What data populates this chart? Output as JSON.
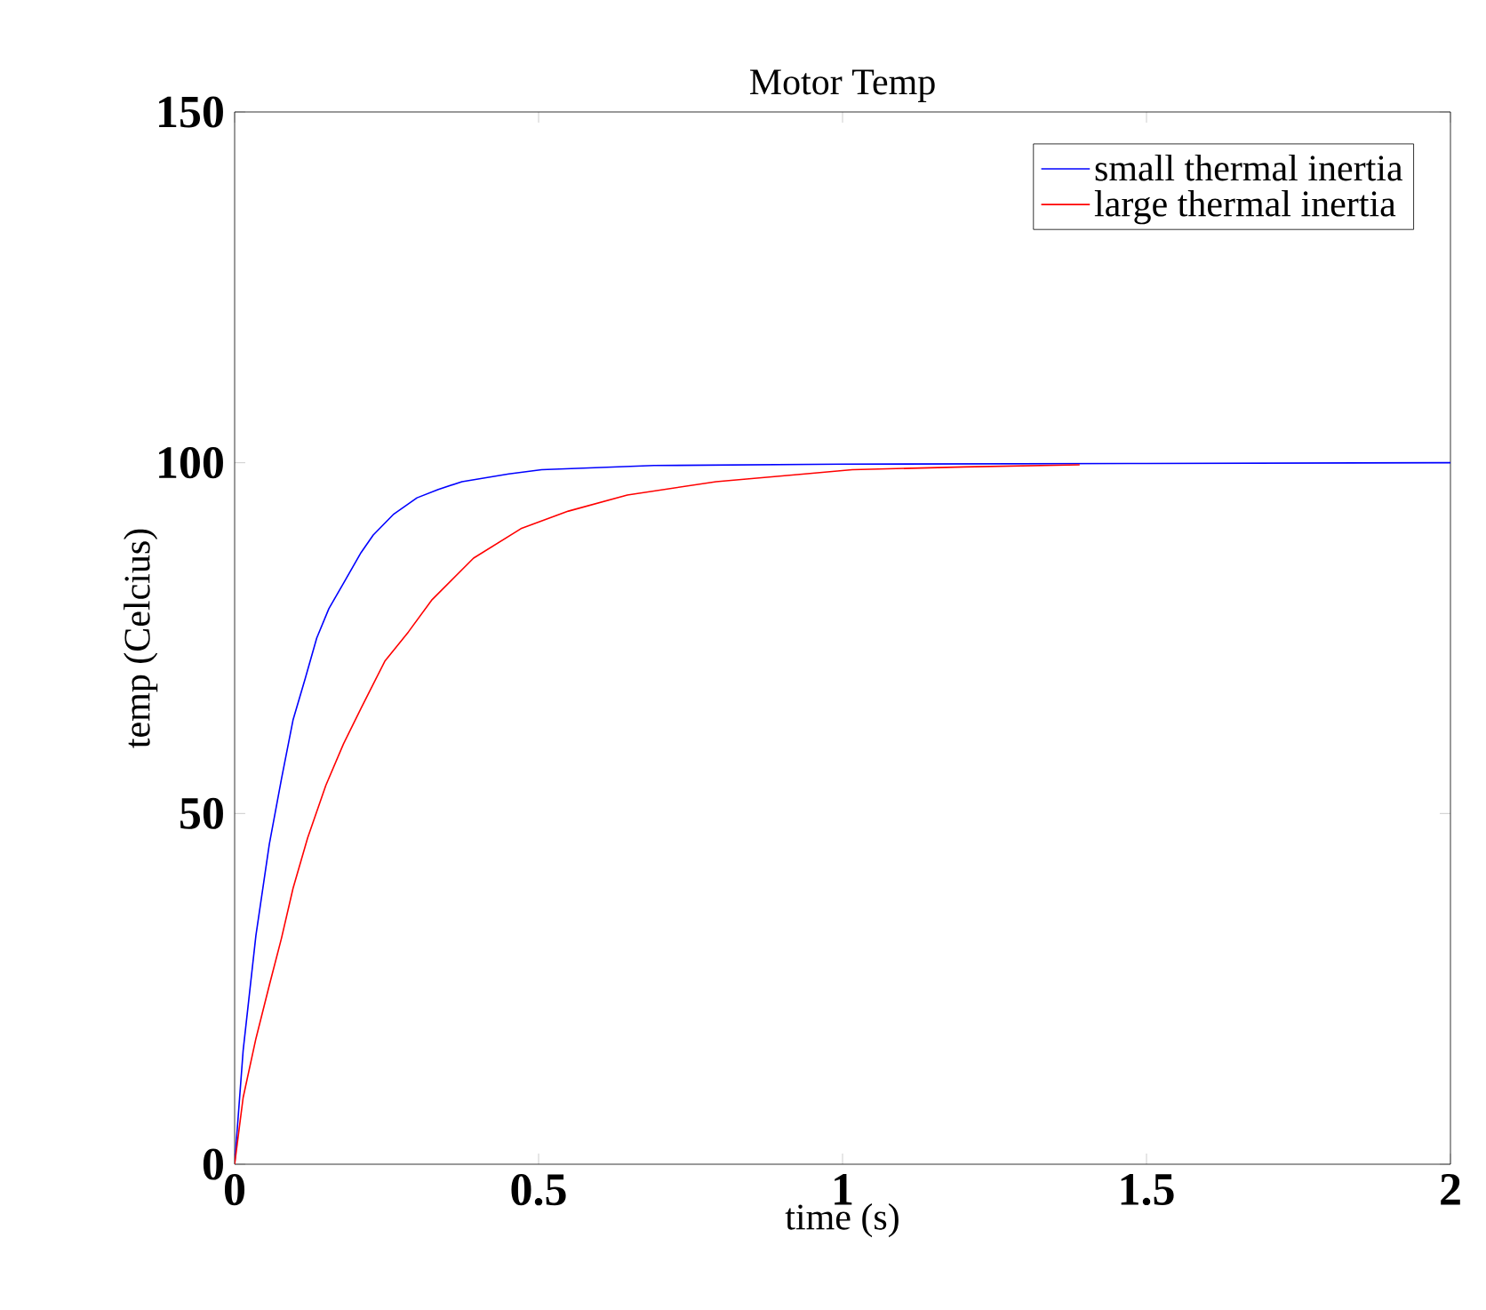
{
  "chart_data": {
    "type": "line",
    "title": "Motor Temp",
    "xlabel": "time (s)",
    "ylabel": "temp (Celcius)",
    "xlim": [
      0,
      2
    ],
    "ylim": [
      0,
      150
    ],
    "xticks": [
      0,
      0.5,
      1,
      1.5,
      2
    ],
    "yticks": [
      0,
      50,
      100,
      150
    ],
    "legend": "top right",
    "grid": false,
    "marker": "none",
    "line_style": "solid",
    "series": [
      {
        "name": "small thermal inertia",
        "color": "#0000ff",
        "x": [
          0,
          0.014,
          0.035,
          0.057,
          0.077,
          0.096,
          0.116,
          0.135,
          0.155,
          0.179,
          0.208,
          0.228,
          0.262,
          0.3,
          0.335,
          0.374,
          0.451,
          0.505,
          0.69,
          1.0,
          1.5,
          2.0
        ],
        "values": [
          0,
          16.2,
          32.6,
          45.6,
          54.9,
          63.3,
          69.2,
          75,
          79.2,
          82.8,
          87.2,
          89.7,
          92.7,
          95,
          96.2,
          97.3,
          98.4,
          99,
          99.6,
          99.8,
          99.9,
          100
        ]
      },
      {
        "name": "large thermal inertia",
        "color": "#ff0000",
        "x": [
          0,
          0.014,
          0.035,
          0.057,
          0.077,
          0.096,
          0.12,
          0.15,
          0.179,
          0.208,
          0.247,
          0.286,
          0.325,
          0.393,
          0.471,
          0.549,
          0.646,
          0.792,
          0.938,
          1.016,
          1.2,
          1.39
        ],
        "values": [
          0,
          9.5,
          17.9,
          25.5,
          32.2,
          39.3,
          46.5,
          54,
          59.9,
          65,
          71.7,
          75.9,
          80.5,
          86.4,
          90.6,
          93.1,
          95.4,
          97.3,
          98.4,
          99,
          99.4,
          99.7
        ]
      }
    ]
  }
}
